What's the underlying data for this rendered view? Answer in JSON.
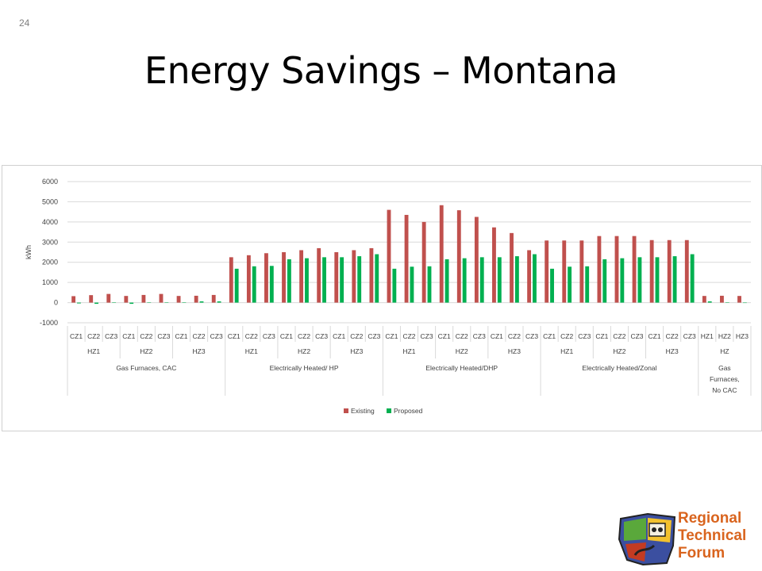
{
  "slide": {
    "number": "24",
    "title": "Energy Savings – Montana"
  },
  "logo": {
    "lines": [
      "Regional",
      "Technical",
      "Forum"
    ],
    "colors": {
      "text": "#d9641e",
      "map_blue": "#3b4fa0",
      "map_green": "#5aa83b",
      "map_yellow": "#f2c12e",
      "map_red": "#c23b22"
    }
  },
  "chart_data": {
    "type": "bar",
    "ylabel": "kWh",
    "ylim": [
      -1000,
      6000
    ],
    "yticks": [
      -1000,
      0,
      1000,
      2000,
      3000,
      4000,
      5000,
      6000
    ],
    "grid": true,
    "legend": "bottom",
    "categories": [
      "CZ1",
      "CZ2",
      "CZ3",
      "CZ1",
      "CZ2",
      "CZ3",
      "CZ1",
      "CZ2",
      "CZ3",
      "CZ1",
      "CZ2",
      "CZ3",
      "CZ1",
      "CZ2",
      "CZ3",
      "CZ1",
      "CZ2",
      "CZ3",
      "CZ1",
      "CZ2",
      "CZ3",
      "CZ1",
      "CZ2",
      "CZ3",
      "CZ1",
      "CZ2",
      "CZ3",
      "CZ1",
      "CZ2",
      "CZ3",
      "CZ1",
      "CZ2",
      "CZ3",
      "CZ1",
      "CZ2",
      "CZ3",
      "HZ1",
      "HZ2",
      "HZ3"
    ],
    "level2": [
      {
        "label": "HZ1",
        "count": 3
      },
      {
        "label": "HZ2",
        "count": 3
      },
      {
        "label": "HZ3",
        "count": 3
      },
      {
        "label": "HZ1",
        "count": 3
      },
      {
        "label": "HZ2",
        "count": 3
      },
      {
        "label": "HZ3",
        "count": 3
      },
      {
        "label": "HZ1",
        "count": 3
      },
      {
        "label": "HZ2",
        "count": 3
      },
      {
        "label": "HZ3",
        "count": 3
      },
      {
        "label": "HZ1",
        "count": 3
      },
      {
        "label": "HZ2",
        "count": 3
      },
      {
        "label": "HZ3",
        "count": 3
      },
      {
        "label": "HZ",
        "count": 3
      }
    ],
    "level3": [
      {
        "label": "Gas Furnaces, CAC",
        "count": 9
      },
      {
        "label": "Electrically Heated/ HP",
        "count": 9
      },
      {
        "label": "Electrically Heated/DHP",
        "count": 9
      },
      {
        "label": "Electrically Heated/Zonal",
        "count": 9
      },
      {
        "label": "Gas Furnaces,No CAC",
        "count": 3
      }
    ],
    "series": [
      {
        "name": "Existing",
        "color": "#c0504d",
        "values": [
          320,
          370,
          430,
          330,
          380,
          430,
          330,
          340,
          380,
          2250,
          2350,
          2450,
          2500,
          2600,
          2700,
          2500,
          2600,
          2700,
          4600,
          4350,
          4000,
          4830,
          4580,
          4250,
          3730,
          3450,
          2600,
          3080,
          3080,
          3080,
          3300,
          3300,
          3300,
          3100,
          3100,
          3100,
          330,
          340,
          330
        ]
      },
      {
        "name": "Proposed",
        "color": "#00b050",
        "values": [
          -40,
          -60,
          10,
          -60,
          10,
          10,
          10,
          60,
          60,
          1680,
          1800,
          1820,
          2150,
          2200,
          2250,
          2250,
          2300,
          2400,
          1680,
          1780,
          1800,
          2150,
          2200,
          2250,
          2250,
          2300,
          2400,
          1680,
          1780,
          1800,
          2150,
          2200,
          2250,
          2250,
          2300,
          2400,
          60,
          10,
          0
        ]
      }
    ]
  }
}
